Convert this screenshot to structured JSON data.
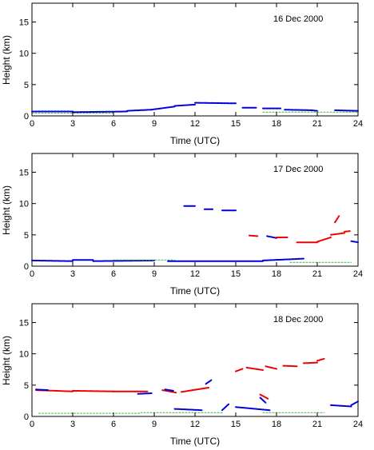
{
  "chart_data": [
    {
      "type": "scatter",
      "date": "16 Dec 2000",
      "xlabel": "Time (UTC)",
      "ylabel": "Height (km)",
      "xlim": [
        0,
        24
      ],
      "ylim": [
        0,
        18
      ],
      "x_ticks": [
        0,
        3,
        6,
        9,
        12,
        15,
        18,
        21,
        24
      ],
      "y_ticks": [
        0,
        5,
        10,
        15
      ],
      "colors": {
        "blue": "#0000dd",
        "red": "#ee0000",
        "green": "#33bb33"
      },
      "segments": [
        {
          "color": "green",
          "x": [
            0.0,
            6.0
          ],
          "y": [
            0.45,
            0.45
          ]
        },
        {
          "color": "green",
          "x": [
            17.0,
            24.0
          ],
          "y": [
            0.6,
            0.6
          ]
        },
        {
          "color": "blue",
          "x": [
            0.0,
            3.0
          ],
          "y": [
            0.7,
            0.7
          ]
        },
        {
          "color": "blue",
          "x": [
            3.0,
            7.0
          ],
          "y": [
            0.6,
            0.7
          ]
        },
        {
          "color": "blue",
          "x": [
            7.0,
            8.8
          ],
          "y": [
            0.8,
            1.0
          ]
        },
        {
          "color": "blue",
          "x": [
            8.8,
            10.5
          ],
          "y": [
            1.0,
            1.5
          ]
        },
        {
          "color": "blue",
          "x": [
            10.5,
            12.0
          ],
          "y": [
            1.6,
            1.8
          ]
        },
        {
          "color": "blue",
          "x": [
            12.0,
            15.0
          ],
          "y": [
            2.1,
            2.0
          ]
        },
        {
          "color": "blue",
          "x": [
            15.5,
            16.5
          ],
          "y": [
            1.3,
            1.3
          ]
        },
        {
          "color": "blue",
          "x": [
            17.0,
            18.3
          ],
          "y": [
            1.2,
            1.2
          ]
        },
        {
          "color": "blue",
          "x": [
            18.6,
            20.5
          ],
          "y": [
            1.0,
            0.9
          ]
        },
        {
          "color": "blue",
          "x": [
            20.5,
            21.0
          ],
          "y": [
            0.9,
            0.8
          ]
        },
        {
          "color": "blue",
          "x": [
            22.3,
            24.0
          ],
          "y": [
            0.9,
            0.8
          ]
        }
      ]
    },
    {
      "type": "scatter",
      "date": "17 Dec 2000",
      "xlabel": "Time (UTC)",
      "ylabel": "Height (km)",
      "xlim": [
        0,
        24
      ],
      "ylim": [
        0,
        18
      ],
      "x_ticks": [
        0,
        3,
        6,
        9,
        12,
        15,
        18,
        21,
        24
      ],
      "y_ticks": [
        0,
        5,
        10,
        15
      ],
      "colors": {
        "blue": "#0000dd",
        "red": "#ee0000",
        "green": "#33bb33"
      },
      "segments": [
        {
          "color": "blue",
          "x": [
            0.0,
            3.0
          ],
          "y": [
            0.9,
            0.8
          ]
        },
        {
          "color": "blue",
          "x": [
            3.0,
            4.5
          ],
          "y": [
            1.0,
            1.0
          ]
        },
        {
          "color": "blue",
          "x": [
            4.5,
            9.0
          ],
          "y": [
            0.8,
            0.9
          ]
        },
        {
          "color": "green",
          "x": [
            6.0,
            10.5
          ],
          "y": [
            1.0,
            1.0
          ]
        },
        {
          "color": "blue",
          "x": [
            10.0,
            17.0
          ],
          "y": [
            0.8,
            0.8
          ]
        },
        {
          "color": "blue",
          "x": [
            17.0,
            20.0
          ],
          "y": [
            0.9,
            1.2
          ]
        },
        {
          "color": "green",
          "x": [
            19.0,
            23.5
          ],
          "y": [
            0.6,
            0.6
          ]
        },
        {
          "color": "blue",
          "x": [
            11.2,
            12.0
          ],
          "y": [
            9.6,
            9.6
          ]
        },
        {
          "color": "blue",
          "x": [
            12.7,
            13.3
          ],
          "y": [
            9.1,
            9.1
          ]
        },
        {
          "color": "blue",
          "x": [
            14.0,
            15.0
          ],
          "y": [
            8.9,
            8.9
          ]
        },
        {
          "color": "red",
          "x": [
            16.0,
            16.6
          ],
          "y": [
            4.9,
            4.8
          ]
        },
        {
          "color": "blue",
          "x": [
            17.3,
            18.0
          ],
          "y": [
            4.8,
            4.5
          ]
        },
        {
          "color": "red",
          "x": [
            18.0,
            18.8
          ],
          "y": [
            4.6,
            4.6
          ]
        },
        {
          "color": "red",
          "x": [
            19.5,
            21.0
          ],
          "y": [
            3.8,
            3.8
          ]
        },
        {
          "color": "red",
          "x": [
            21.0,
            22.0
          ],
          "y": [
            3.9,
            4.6
          ]
        },
        {
          "color": "red",
          "x": [
            22.0,
            23.0
          ],
          "y": [
            5.0,
            5.3
          ]
        },
        {
          "color": "red",
          "x": [
            23.0,
            23.4
          ],
          "y": [
            5.5,
            5.6
          ]
        },
        {
          "color": "blue",
          "x": [
            23.5,
            24.0
          ],
          "y": [
            4.0,
            3.8
          ]
        },
        {
          "color": "red",
          "x": [
            22.3,
            22.6
          ],
          "y": [
            7.0,
            8.0
          ]
        }
      ]
    },
    {
      "type": "scatter",
      "date": "18 Dec 2000",
      "xlabel": "Time (UTC)",
      "ylabel": "Height (km)",
      "xlim": [
        0,
        24
      ],
      "ylim": [
        0,
        18
      ],
      "x_ticks": [
        0,
        3,
        6,
        9,
        12,
        15,
        18,
        21,
        24
      ],
      "y_ticks": [
        0,
        5,
        10,
        15
      ],
      "colors": {
        "blue": "#0000dd",
        "red": "#ee0000",
        "green": "#33bb33"
      },
      "segments": [
        {
          "color": "red",
          "x": [
            0.3,
            3.0
          ],
          "y": [
            4.2,
            4.0
          ]
        },
        {
          "color": "red",
          "x": [
            3.0,
            6.0
          ],
          "y": [
            4.1,
            4.0
          ]
        },
        {
          "color": "red",
          "x": [
            6.0,
            8.5
          ],
          "y": [
            4.0,
            4.0
          ]
        },
        {
          "color": "blue",
          "x": [
            0.3,
            1.2
          ],
          "y": [
            4.3,
            4.2
          ]
        },
        {
          "color": "blue",
          "x": [
            7.8,
            8.8
          ],
          "y": [
            3.6,
            3.7
          ]
        },
        {
          "color": "red",
          "x": [
            9.6,
            10.6
          ],
          "y": [
            4.2,
            3.8
          ]
        },
        {
          "color": "blue",
          "x": [
            9.8,
            10.4
          ],
          "y": [
            4.3,
            4.1
          ]
        },
        {
          "color": "red",
          "x": [
            11.0,
            13.0
          ],
          "y": [
            3.9,
            4.6
          ]
        },
        {
          "color": "blue",
          "x": [
            12.8,
            13.2
          ],
          "y": [
            5.2,
            5.8
          ]
        },
        {
          "color": "blue",
          "x": [
            10.5,
            12.5
          ],
          "y": [
            1.2,
            1.0
          ]
        },
        {
          "color": "blue",
          "x": [
            14.0,
            14.5
          ],
          "y": [
            1.0,
            2.0
          ]
        },
        {
          "color": "blue",
          "x": [
            15.0,
            17.5
          ],
          "y": [
            1.5,
            1.0
          ]
        },
        {
          "color": "blue",
          "x": [
            16.8,
            17.2
          ],
          "y": [
            3.0,
            2.2
          ]
        },
        {
          "color": "red",
          "x": [
            16.8,
            17.4
          ],
          "y": [
            3.5,
            2.8
          ]
        },
        {
          "color": "green",
          "x": [
            0.5,
            8.0
          ],
          "y": [
            0.5,
            0.5
          ]
        },
        {
          "color": "green",
          "x": [
            8.0,
            14.0
          ],
          "y": [
            0.6,
            0.6
          ]
        },
        {
          "color": "green",
          "x": [
            17.0,
            21.5
          ],
          "y": [
            0.6,
            0.6
          ]
        },
        {
          "color": "red",
          "x": [
            15.0,
            15.5
          ],
          "y": [
            7.2,
            7.6
          ]
        },
        {
          "color": "red",
          "x": [
            15.8,
            17.0
          ],
          "y": [
            7.8,
            7.4
          ]
        },
        {
          "color": "red",
          "x": [
            17.2,
            18.0
          ],
          "y": [
            8.0,
            7.6
          ]
        },
        {
          "color": "red",
          "x": [
            18.5,
            19.5
          ],
          "y": [
            8.1,
            8.0
          ]
        },
        {
          "color": "red",
          "x": [
            20.0,
            21.0
          ],
          "y": [
            8.5,
            8.6
          ]
        },
        {
          "color": "red",
          "x": [
            21.0,
            21.5
          ],
          "y": [
            8.9,
            9.2
          ]
        },
        {
          "color": "blue",
          "x": [
            22.0,
            23.5
          ],
          "y": [
            1.8,
            1.6
          ]
        },
        {
          "color": "blue",
          "x": [
            23.5,
            24.0
          ],
          "y": [
            1.8,
            2.4
          ]
        }
      ]
    }
  ]
}
